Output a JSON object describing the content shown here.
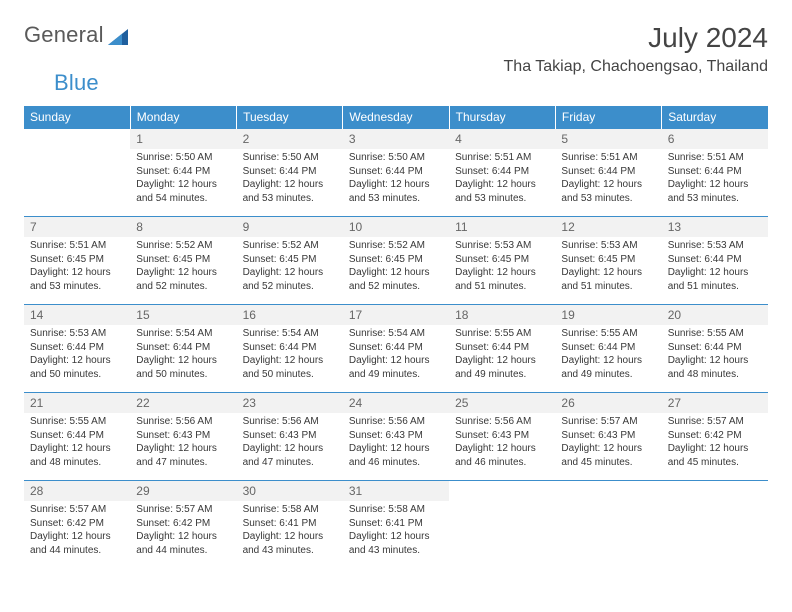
{
  "brand": {
    "general": "General",
    "blue": "Blue"
  },
  "title": "July 2024",
  "location": "Tha Takiap, Chachoengsao, Thailand",
  "colors": {
    "header_bg": "#3c8ecb",
    "header_text": "#ffffff",
    "row_border": "#3c8ecb",
    "shaded_bg": "#f2f2f2",
    "body_text": "#383838",
    "daynum_text": "#666666"
  },
  "weekdays": [
    "Sunday",
    "Monday",
    "Tuesday",
    "Wednesday",
    "Thursday",
    "Friday",
    "Saturday"
  ],
  "weeks": [
    [
      null,
      {
        "d": "1",
        "sr": "5:50 AM",
        "ss": "6:44 PM",
        "dl": "12 hours and 54 minutes."
      },
      {
        "d": "2",
        "sr": "5:50 AM",
        "ss": "6:44 PM",
        "dl": "12 hours and 53 minutes."
      },
      {
        "d": "3",
        "sr": "5:50 AM",
        "ss": "6:44 PM",
        "dl": "12 hours and 53 minutes."
      },
      {
        "d": "4",
        "sr": "5:51 AM",
        "ss": "6:44 PM",
        "dl": "12 hours and 53 minutes."
      },
      {
        "d": "5",
        "sr": "5:51 AM",
        "ss": "6:44 PM",
        "dl": "12 hours and 53 minutes."
      },
      {
        "d": "6",
        "sr": "5:51 AM",
        "ss": "6:44 PM",
        "dl": "12 hours and 53 minutes."
      }
    ],
    [
      {
        "d": "7",
        "sr": "5:51 AM",
        "ss": "6:45 PM",
        "dl": "12 hours and 53 minutes."
      },
      {
        "d": "8",
        "sr": "5:52 AM",
        "ss": "6:45 PM",
        "dl": "12 hours and 52 minutes."
      },
      {
        "d": "9",
        "sr": "5:52 AM",
        "ss": "6:45 PM",
        "dl": "12 hours and 52 minutes."
      },
      {
        "d": "10",
        "sr": "5:52 AM",
        "ss": "6:45 PM",
        "dl": "12 hours and 52 minutes."
      },
      {
        "d": "11",
        "sr": "5:53 AM",
        "ss": "6:45 PM",
        "dl": "12 hours and 51 minutes."
      },
      {
        "d": "12",
        "sr": "5:53 AM",
        "ss": "6:45 PM",
        "dl": "12 hours and 51 minutes."
      },
      {
        "d": "13",
        "sr": "5:53 AM",
        "ss": "6:44 PM",
        "dl": "12 hours and 51 minutes."
      }
    ],
    [
      {
        "d": "14",
        "sr": "5:53 AM",
        "ss": "6:44 PM",
        "dl": "12 hours and 50 minutes."
      },
      {
        "d": "15",
        "sr": "5:54 AM",
        "ss": "6:44 PM",
        "dl": "12 hours and 50 minutes."
      },
      {
        "d": "16",
        "sr": "5:54 AM",
        "ss": "6:44 PM",
        "dl": "12 hours and 50 minutes."
      },
      {
        "d": "17",
        "sr": "5:54 AM",
        "ss": "6:44 PM",
        "dl": "12 hours and 49 minutes."
      },
      {
        "d": "18",
        "sr": "5:55 AM",
        "ss": "6:44 PM",
        "dl": "12 hours and 49 minutes."
      },
      {
        "d": "19",
        "sr": "5:55 AM",
        "ss": "6:44 PM",
        "dl": "12 hours and 49 minutes."
      },
      {
        "d": "20",
        "sr": "5:55 AM",
        "ss": "6:44 PM",
        "dl": "12 hours and 48 minutes."
      }
    ],
    [
      {
        "d": "21",
        "sr": "5:55 AM",
        "ss": "6:44 PM",
        "dl": "12 hours and 48 minutes."
      },
      {
        "d": "22",
        "sr": "5:56 AM",
        "ss": "6:43 PM",
        "dl": "12 hours and 47 minutes."
      },
      {
        "d": "23",
        "sr": "5:56 AM",
        "ss": "6:43 PM",
        "dl": "12 hours and 47 minutes."
      },
      {
        "d": "24",
        "sr": "5:56 AM",
        "ss": "6:43 PM",
        "dl": "12 hours and 46 minutes."
      },
      {
        "d": "25",
        "sr": "5:56 AM",
        "ss": "6:43 PM",
        "dl": "12 hours and 46 minutes."
      },
      {
        "d": "26",
        "sr": "5:57 AM",
        "ss": "6:43 PM",
        "dl": "12 hours and 45 minutes."
      },
      {
        "d": "27",
        "sr": "5:57 AM",
        "ss": "6:42 PM",
        "dl": "12 hours and 45 minutes."
      }
    ],
    [
      {
        "d": "28",
        "sr": "5:57 AM",
        "ss": "6:42 PM",
        "dl": "12 hours and 44 minutes."
      },
      {
        "d": "29",
        "sr": "5:57 AM",
        "ss": "6:42 PM",
        "dl": "12 hours and 44 minutes."
      },
      {
        "d": "30",
        "sr": "5:58 AM",
        "ss": "6:41 PM",
        "dl": "12 hours and 43 minutes."
      },
      {
        "d": "31",
        "sr": "5:58 AM",
        "ss": "6:41 PM",
        "dl": "12 hours and 43 minutes."
      },
      null,
      null,
      null
    ]
  ]
}
